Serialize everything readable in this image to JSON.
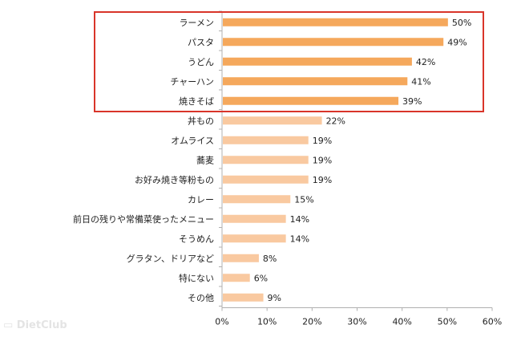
{
  "chart_data": {
    "type": "bar",
    "orientation": "horizontal",
    "title": "",
    "xlabel": "",
    "ylabel": "",
    "categories": [
      "ラーメン",
      "パスタ",
      "うどん",
      "チャーハン",
      "焼きそば",
      "丼もの",
      "オムライス",
      "蕎麦",
      "お好み焼き等粉もの",
      "カレー",
      "前日の残りや常備菜使ったメニュー",
      "そうめん",
      "グラタン、ドリアなど",
      "特にない",
      "その他"
    ],
    "values": [
      50,
      49,
      42,
      41,
      39,
      22,
      19,
      19,
      19,
      15,
      14,
      14,
      8,
      6,
      9
    ],
    "data_labels": [
      "50%",
      "49%",
      "42%",
      "41%",
      "39%",
      "22%",
      "19%",
      "19%",
      "19%",
      "15%",
      "14%",
      "14%",
      "8%",
      "6%",
      "9%"
    ],
    "highlighted_count": 5,
    "xlim": [
      0,
      60
    ],
    "x_ticks": [
      "0%",
      "10%",
      "20%",
      "30%",
      "40%",
      "50%",
      "60%"
    ],
    "grid": false,
    "colors": {
      "highlight_bar": "#f5a85c",
      "normal_bar": "#f9c9a0",
      "highlight_box": "#d9352a",
      "axis": "#b0b0b0",
      "text": "#222222"
    }
  },
  "watermark": "DietClub"
}
